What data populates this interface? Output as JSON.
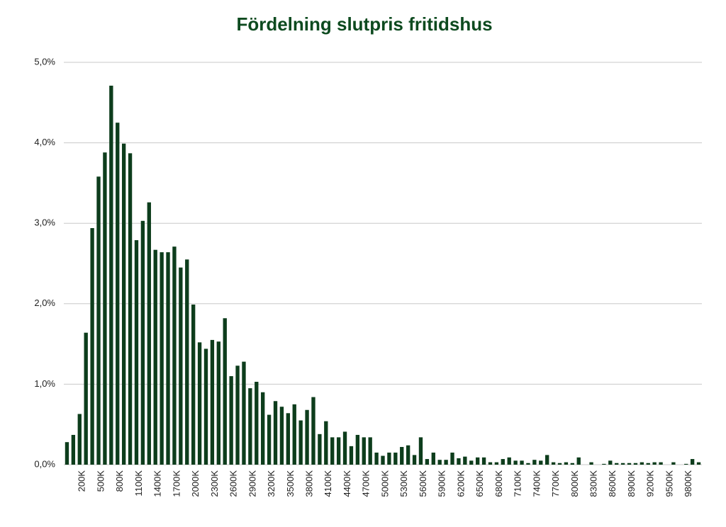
{
  "chart_data": {
    "type": "bar",
    "title": "Fördelning slutpris fritidshus",
    "categories": [
      null,
      null,
      "200K",
      null,
      null,
      "500K",
      null,
      null,
      "800K",
      null,
      null,
      "1100K",
      null,
      null,
      "1400K",
      null,
      null,
      "1700K",
      null,
      null,
      "2000K",
      null,
      null,
      "2300K",
      null,
      null,
      "2600K",
      null,
      null,
      "2900K",
      null,
      null,
      "3200K",
      null,
      null,
      "3500K",
      null,
      null,
      "3800K",
      null,
      null,
      "4100K",
      null,
      null,
      "4400K",
      null,
      null,
      "4700K",
      null,
      null,
      "5000K",
      null,
      null,
      "5300K",
      null,
      null,
      "5600K",
      null,
      null,
      "5900K",
      null,
      null,
      "6200K",
      null,
      null,
      "6500K",
      null,
      null,
      "6800K",
      null,
      null,
      "7100K",
      null,
      null,
      "7400K",
      null,
      null,
      "7700K",
      null,
      null,
      "8000K",
      null,
      null,
      "8300K",
      null,
      null,
      "8600K",
      null,
      null,
      "8900K",
      null,
      null,
      "9200K",
      null,
      null,
      "9500K",
      null,
      null,
      "9800K",
      null,
      null
    ],
    "values": [
      0.28,
      0.37,
      0.63,
      1.64,
      2.94,
      3.58,
      3.88,
      4.71,
      4.25,
      3.99,
      3.87,
      2.79,
      3.03,
      3.26,
      2.67,
      2.64,
      2.64,
      2.71,
      2.45,
      2.55,
      1.99,
      1.52,
      1.44,
      1.55,
      1.53,
      1.82,
      1.1,
      1.23,
      1.28,
      0.95,
      1.03,
      0.9,
      0.62,
      0.79,
      0.72,
      0.64,
      0.75,
      0.55,
      0.68,
      0.84,
      0.38,
      0.54,
      0.34,
      0.34,
      0.41,
      0.23,
      0.37,
      0.34,
      0.34,
      0.15,
      0.11,
      0.15,
      0.15,
      0.22,
      0.24,
      0.12,
      0.34,
      0.07,
      0.15,
      0.06,
      0.06,
      0.15,
      0.08,
      0.1,
      0.05,
      0.09,
      0.09,
      0.03,
      0.03,
      0.07,
      0.09,
      0.05,
      0.05,
      0.02,
      0.06,
      0.05,
      0.12,
      0.03,
      0.02,
      0.03,
      0.02,
      0.09,
      0.0,
      0.03,
      0.0,
      0.01,
      0.05,
      0.02,
      0.02,
      0.02,
      0.02,
      0.03,
      0.02,
      0.03,
      0.03,
      0.0,
      0.03,
      0.0,
      0.01,
      0.07,
      0.03
    ],
    "color": "#0d3d1c",
    "ylim": [
      0,
      5
    ],
    "yticks": [
      {
        "value": 0,
        "label": "0,0%"
      },
      {
        "value": 1,
        "label": "1,0%"
      },
      {
        "value": 2,
        "label": "2,0%"
      },
      {
        "value": 3,
        "label": "3,0%"
      },
      {
        "value": 4,
        "label": "4,0%"
      },
      {
        "value": 5,
        "label": "5,0%"
      }
    ],
    "grid": true
  }
}
